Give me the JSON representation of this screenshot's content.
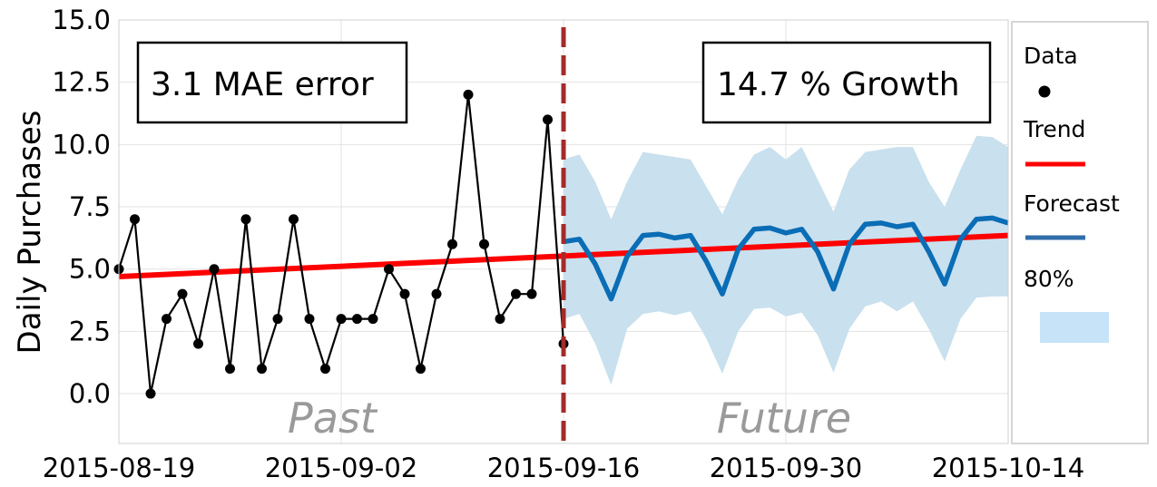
{
  "chart_data": {
    "type": "line",
    "ylabel": "Daily Purchases",
    "ylim": [
      -2.0,
      15.0
    ],
    "yticks": [
      0.0,
      2.5,
      5.0,
      7.5,
      10.0,
      12.5,
      15.0
    ],
    "ytick_labels": [
      "0.0",
      "2.5",
      "5.0",
      "7.5",
      "10.0",
      "12.5",
      "15.0"
    ],
    "xlim": [
      "2015-08-19",
      "2015-10-14"
    ],
    "xtick_labels": [
      "2015-08-19",
      "2015-09-02",
      "2015-09-16",
      "2015-09-30",
      "2015-10-14"
    ],
    "grid": true,
    "legend_placement": "right",
    "cutoff": "2015-09-16",
    "annotations": {
      "error": "3.1 MAE error",
      "growth": "14.7 % Growth",
      "past": "Past",
      "future": "Future"
    },
    "legend": [
      {
        "label": "Data",
        "kind": "marker",
        "color": "#000000"
      },
      {
        "label": "Trend",
        "kind": "line",
        "color": "#ff0000"
      },
      {
        "label": "Forecast",
        "kind": "line",
        "color": "#2f6ea8"
      },
      {
        "label": "80%",
        "kind": "patch",
        "color": "#c6e3f8"
      }
    ],
    "colors": {
      "data": "#000000",
      "trend": "#ff0000",
      "forecast": "#0a6db5",
      "band": "#c9e0ee",
      "cutoff": "#a52a2a"
    },
    "data": {
      "x": [
        "2015-08-19",
        "2015-08-20",
        "2015-08-21",
        "2015-08-22",
        "2015-08-23",
        "2015-08-24",
        "2015-08-25",
        "2015-08-26",
        "2015-08-27",
        "2015-08-28",
        "2015-08-29",
        "2015-08-30",
        "2015-08-31",
        "2015-09-01",
        "2015-09-02",
        "2015-09-03",
        "2015-09-04",
        "2015-09-05",
        "2015-09-06",
        "2015-09-07",
        "2015-09-08",
        "2015-09-09",
        "2015-09-10",
        "2015-09-11",
        "2015-09-12",
        "2015-09-13",
        "2015-09-14",
        "2015-09-15",
        "2015-09-16"
      ],
      "y": [
        5,
        7,
        0,
        3,
        4,
        2,
        5,
        1,
        7,
        1,
        3,
        7,
        3,
        1,
        3,
        3,
        3,
        5,
        4,
        1,
        4,
        6,
        12,
        6,
        3,
        4,
        4,
        11,
        2
      ]
    },
    "trend": {
      "x": [
        "2015-08-19",
        "2015-10-14"
      ],
      "y": [
        4.7,
        6.35
      ]
    },
    "forecast": {
      "x": [
        "2015-09-16",
        "2015-09-17",
        "2015-09-18",
        "2015-09-19",
        "2015-09-20",
        "2015-09-21",
        "2015-09-22",
        "2015-09-23",
        "2015-09-24",
        "2015-09-25",
        "2015-09-26",
        "2015-09-27",
        "2015-09-28",
        "2015-09-29",
        "2015-09-30",
        "2015-10-01",
        "2015-10-02",
        "2015-10-03",
        "2015-10-04",
        "2015-10-05",
        "2015-10-06",
        "2015-10-07",
        "2015-10-08",
        "2015-10-09",
        "2015-10-10",
        "2015-10-11",
        "2015-10-12",
        "2015-10-13",
        "2015-10-14"
      ],
      "y": [
        6.1,
        6.2,
        5.2,
        3.8,
        5.5,
        6.35,
        6.4,
        6.25,
        6.35,
        5.3,
        4.0,
        5.8,
        6.6,
        6.65,
        6.45,
        6.6,
        5.7,
        4.2,
        6.0,
        6.8,
        6.85,
        6.7,
        6.8,
        5.7,
        4.4,
        6.2,
        7.0,
        7.05,
        6.85
      ],
      "lower": [
        3.0,
        3.2,
        2.0,
        0.35,
        2.6,
        3.2,
        3.3,
        3.15,
        3.3,
        2.2,
        0.8,
        2.5,
        3.4,
        3.45,
        3.1,
        3.25,
        2.35,
        0.85,
        2.6,
        3.5,
        3.7,
        3.3,
        3.7,
        2.6,
        1.3,
        3.0,
        3.85,
        3.9,
        3.9
      ],
      "upper": [
        9.4,
        9.6,
        8.5,
        7.0,
        8.5,
        9.7,
        9.6,
        9.5,
        9.4,
        8.3,
        7.2,
        8.6,
        9.6,
        9.9,
        9.4,
        9.9,
        8.6,
        7.3,
        9.0,
        9.7,
        9.8,
        9.9,
        9.9,
        8.5,
        7.5,
        9.0,
        10.35,
        10.3,
        9.9
      ]
    }
  }
}
